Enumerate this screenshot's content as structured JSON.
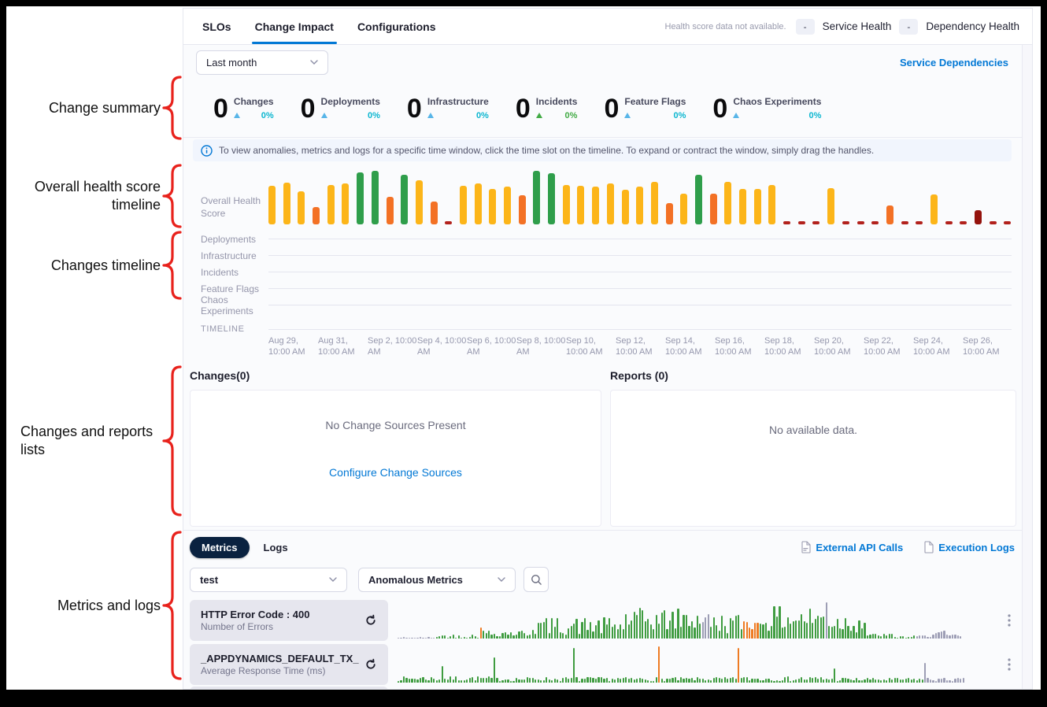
{
  "annotations": {
    "color": "#e8221c",
    "items": [
      {
        "label": "Change summary"
      },
      {
        "label": "Overall health score timeline"
      },
      {
        "label": "Changes timeline"
      },
      {
        "label": "Changes and reports lists"
      },
      {
        "label": "Metrics and logs"
      }
    ]
  },
  "header": {
    "tabs": [
      {
        "label": "SLOs"
      },
      {
        "label": "Change Impact"
      },
      {
        "label": "Configurations"
      }
    ],
    "active_tab": "Change Impact",
    "health_note": "Health score data not available.",
    "service_health": {
      "badge": "-",
      "label": "Service Health"
    },
    "dependency_health": {
      "badge": "-",
      "label": "Dependency Health"
    }
  },
  "toolbar": {
    "time_range": "Last month",
    "service_dependencies": "Service Dependencies"
  },
  "change_summary": {
    "stats": [
      {
        "value": "0",
        "label": "Changes",
        "percent": "0%",
        "trend": "cyan"
      },
      {
        "value": "0",
        "label": "Deployments",
        "percent": "0%",
        "trend": "cyan"
      },
      {
        "value": "0",
        "label": "Infrastructure",
        "percent": "0%",
        "trend": "cyan"
      },
      {
        "value": "0",
        "label": "Incidents",
        "percent": "0%",
        "trend": "green"
      },
      {
        "value": "0",
        "label": "Feature Flags",
        "percent": "0%",
        "trend": "cyan"
      },
      {
        "value": "0",
        "label": "Chaos Experiments",
        "percent": "0%",
        "trend": "cyan"
      }
    ],
    "trend_colors": {
      "cyan": {
        "arrow": "#58b5e8",
        "pct": "#0bb6d0"
      },
      "green": {
        "arrow": "#42ab45",
        "pct": "#42ab45"
      }
    }
  },
  "info_banner": {
    "text": "To view anomalies, metrics and logs for a specific time window, click the time slot on the timeline. To expand or contract the window, simply drag the handles."
  },
  "timeline": {
    "health_label": "Overall Health Score",
    "rows": [
      "Deployments",
      "Infrastructure",
      "Incidents",
      "Feature Flags",
      "Chaos Experiments"
    ],
    "timeline_label": "TIMELINE",
    "dates": [
      "Aug 29, 10:00 AM",
      "Aug 31, 10:00 AM",
      "Sep 2, 10:00 AM",
      "Sep 4, 10:00 AM",
      "Sep 6, 10:00 AM",
      "Sep 8, 10:00 AM",
      "Sep 10, 10:00 AM",
      "Sep 12, 10:00 AM",
      "Sep 14, 10:00 AM",
      "Sep 16, 10:00 AM",
      "Sep 18, 10:00 AM",
      "Sep 20, 10:00 AM",
      "Sep 22, 10:00 AM",
      "Sep 24, 10:00 AM",
      "Sep 26, 10:00 AM"
    ]
  },
  "changes_panel": {
    "title": "Changes(0)",
    "empty": "No Change Sources Present",
    "link": "Configure Change Sources"
  },
  "reports_panel": {
    "title": "Reports (0)",
    "empty": "No available data."
  },
  "metrics_section": {
    "tabs": [
      {
        "label": "Metrics",
        "active": true
      },
      {
        "label": "Logs",
        "active": false
      }
    ],
    "links": [
      {
        "label": "External API Calls",
        "icon": "api-document-icon"
      },
      {
        "label": "Execution Logs",
        "icon": "document-icon"
      }
    ],
    "filters": {
      "service": "test",
      "metric_type": "Anomalous Metrics"
    },
    "rows": [
      {
        "title": "HTTP Error Code : 400",
        "subtitle": "Number of Errors"
      },
      {
        "title": "_APPDYNAMICS_DEFAULT_TX_",
        "subtitle": "Average Response Time (ms)"
      }
    ]
  },
  "chart_data": [
    {
      "type": "bar",
      "name": "overall-health-score",
      "title": "Overall Health Score",
      "x_range": "Aug 29 10:00 AM – Sep 26 10:00 AM, one bar per ~12h slot",
      "y_meaning": "health score severity: green=good, yellow=observe, orange=needs attention, red stub/dark red=unhealthy or no data",
      "palette": {
        "y": "#fcb519",
        "g": "#2f9e4b",
        "o": "#f37125",
        "r": "#b2211c",
        "d": "#94120d"
      },
      "bars": [
        [
          "y",
          72
        ],
        [
          "y",
          78
        ],
        [
          "y",
          62
        ],
        [
          "o",
          33
        ],
        [
          "y",
          74
        ],
        [
          "y",
          77
        ],
        [
          "g",
          97
        ],
        [
          "g",
          100
        ],
        [
          "o",
          52
        ],
        [
          "g",
          93
        ],
        [
          "y",
          82
        ],
        [
          "o",
          42
        ],
        [
          "r",
          6
        ],
        [
          "y",
          72
        ],
        [
          "y",
          76
        ],
        [
          "y",
          66
        ],
        [
          "y",
          70
        ],
        [
          "o",
          55
        ],
        [
          "g",
          100
        ],
        [
          "g",
          95
        ],
        [
          "y",
          74
        ],
        [
          "y",
          72
        ],
        [
          "y",
          70
        ],
        [
          "y",
          76
        ],
        [
          "y",
          64
        ],
        [
          "y",
          70
        ],
        [
          "y",
          79
        ],
        [
          "o",
          40
        ],
        [
          "y",
          58
        ],
        [
          "g",
          92
        ],
        [
          "o",
          57
        ],
        [
          "y",
          79
        ],
        [
          "y",
          66
        ],
        [
          "y",
          66
        ],
        [
          "y",
          73
        ],
        [
          "r",
          6
        ],
        [
          "r",
          6
        ],
        [
          "r",
          6
        ],
        [
          "y",
          68
        ],
        [
          "r",
          6
        ],
        [
          "r",
          6
        ],
        [
          "r",
          6
        ],
        [
          "o",
          36
        ],
        [
          "r",
          6
        ],
        [
          "r",
          6
        ],
        [
          "y",
          56
        ],
        [
          "r",
          6
        ],
        [
          "r",
          6
        ],
        [
          "d",
          26
        ],
        [
          "r",
          6
        ],
        [
          "r",
          6
        ]
      ]
    },
    {
      "type": "bar",
      "name": "sparkline-http-error-400",
      "metric": "HTTP Error Code : 400",
      "seed": 42,
      "palette": {
        "green": "#3f9c40",
        "orange": "#ee7b23",
        "gray": "#9d9eb5"
      },
      "segments": [
        [
          14,
          "gray",
          1,
          4
        ],
        [
          16,
          "green",
          2,
          12
        ],
        [
          1,
          "orange",
          30,
          30
        ],
        [
          18,
          "green",
          5,
          25
        ],
        [
          34,
          "green",
          10,
          60
        ],
        [
          28,
          "green",
          20,
          85
        ],
        [
          3,
          "gray",
          40,
          70
        ],
        [
          12,
          "green",
          15,
          70
        ],
        [
          2,
          "orange",
          35,
          55
        ],
        [
          4,
          "orange",
          25,
          50
        ],
        [
          24,
          "green",
          20,
          90
        ],
        [
          1,
          "gray",
          100,
          100
        ],
        [
          14,
          "green",
          15,
          75
        ],
        [
          10,
          "green",
          4,
          15
        ],
        [
          8,
          "green",
          2,
          8
        ],
        [
          6,
          "gray",
          3,
          10
        ],
        [
          5,
          "gray",
          8,
          22
        ],
        [
          6,
          "gray",
          3,
          12
        ]
      ]
    },
    {
      "type": "bar",
      "name": "sparkline-appdynamics-response-time",
      "metric": "_APPDYNAMICS_DEFAULT_TX_",
      "seed": 7,
      "palette": {
        "green": "#3f9c40",
        "orange": "#ee7b23",
        "gray": "#9d9eb5"
      },
      "segments": [
        [
          16,
          "green",
          5,
          18
        ],
        [
          1,
          "green",
          45,
          45
        ],
        [
          18,
          "green",
          5,
          18
        ],
        [
          1,
          "green",
          70,
          70
        ],
        [
          28,
          "green",
          4,
          16
        ],
        [
          1,
          "green",
          95,
          95
        ],
        [
          30,
          "green",
          4,
          16
        ],
        [
          1,
          "orange",
          100,
          100
        ],
        [
          28,
          "green",
          4,
          16
        ],
        [
          1,
          "orange",
          95,
          95
        ],
        [
          34,
          "green",
          4,
          18
        ],
        [
          1,
          "green",
          40,
          40
        ],
        [
          32,
          "green",
          4,
          14
        ],
        [
          1,
          "gray",
          55,
          55
        ],
        [
          14,
          "gray",
          4,
          14
        ]
      ]
    }
  ],
  "colors": {
    "accent_blue": "#0278d5",
    "pill_navy": "#0a2240",
    "annotation_red": "#e8221c"
  }
}
